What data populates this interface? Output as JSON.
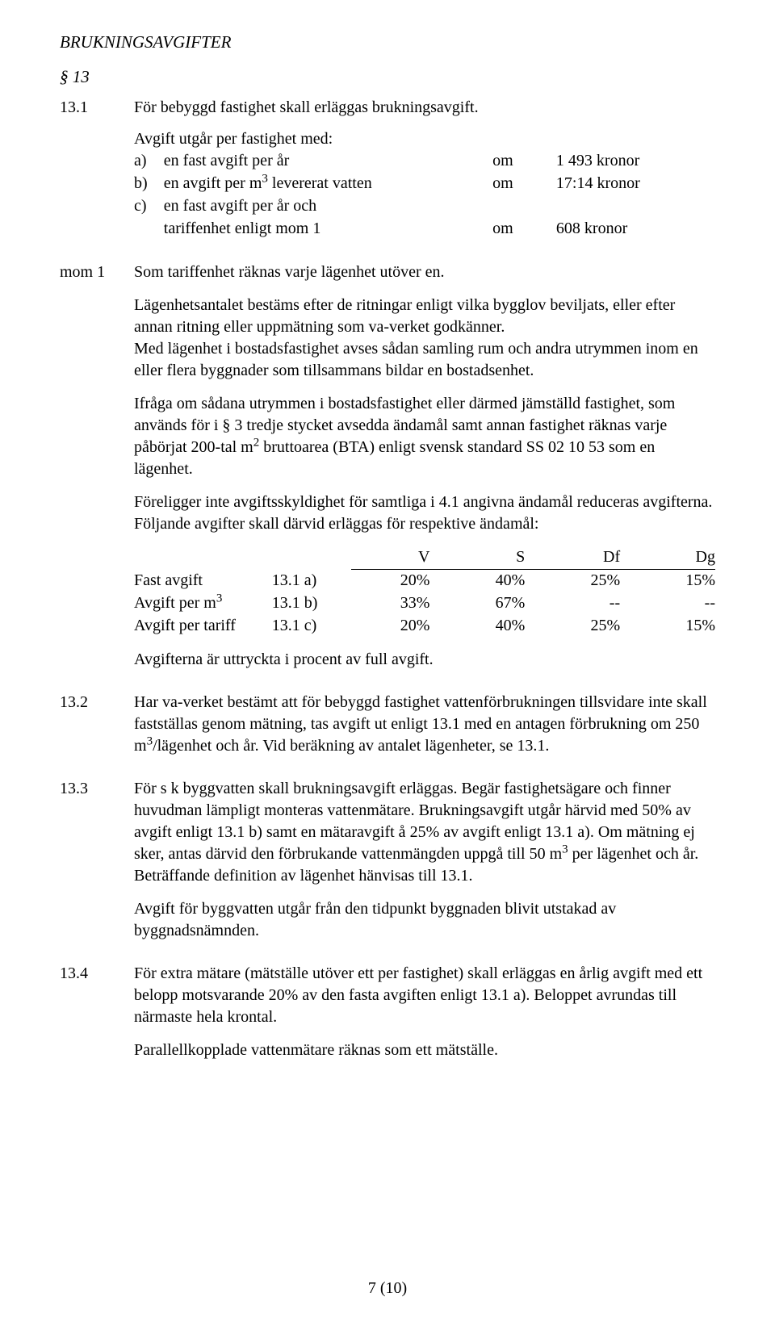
{
  "section_heading": "BRUKNINGSAVGIFTER",
  "paragraph_13": "§ 13",
  "s13_1": {
    "num": "13.1",
    "intro": "För bebyggd fastighet skall erläggas brukningsavgift.",
    "tariff_lead": "Avgift utgår per fastighet med:",
    "rows": [
      {
        "k": "a)",
        "desc_pre": "en fast avgift per år",
        "desc_sup": "",
        "desc_post": "",
        "om": "om",
        "val": "1 493 kronor"
      },
      {
        "k": "b)",
        "desc_pre": "en avgift per m",
        "desc_sup": "3",
        "desc_post": " levererat vatten",
        "om": "om",
        "val": "17:14 kronor"
      },
      {
        "k": "c)",
        "desc_pre": "en fast avgift per år och",
        "desc_sup": "",
        "desc_post": "",
        "om": "",
        "val": ""
      },
      {
        "k": "",
        "desc_pre": "tariffenhet enligt mom 1",
        "desc_sup": "",
        "desc_post": "",
        "om": "om",
        "val": "608 kronor"
      }
    ],
    "mom1_label": "mom 1",
    "mom1_text": "Som tariffenhet räknas varje lägenhet utöver en.",
    "p2": "Lägenhetsantalet bestäms efter de ritningar enligt vilka bygglov beviljats, eller efter annan ritning eller uppmätning som va-verket godkänner.",
    "p3": "Med lägenhet i bostadsfastighet avses sådan samling rum och andra utrymmen inom en eller flera byggnader som tillsammans bildar en bostadsenhet.",
    "p4_pre": "Ifråga om sådana utrymmen i bostadsfastighet eller därmed jämställd fastighet, som används för i § 3 tredje stycket avsedda ändamål samt annan fastighet räknas varje påbörjat 200-tal m",
    "p4_sup": "2",
    "p4_post": " bruttoarea (BTA) enligt svensk standard SS 02 10 53 som en lägenhet.",
    "p5": "Föreligger inte avgiftsskyldighet för samtliga i 4.1 angivna ändamål reduceras avgifterna. Följande avgifter skall därvid erläggas för respektive ändamål:",
    "pct_head": {
      "v": "V",
      "s": "S",
      "df": "Df",
      "dg": "Dg"
    },
    "pct_rows": [
      {
        "l_pre": "Fast avgift",
        "l_sup": "",
        "ref": "13.1 a)",
        "v": "20%",
        "s": "40%",
        "df": "25%",
        "dg": "15%"
      },
      {
        "l_pre": "Avgift per m",
        "l_sup": "3",
        "ref": "13.1 b)",
        "v": "33%",
        "s": "67%",
        "df": "--",
        "dg": "--"
      },
      {
        "l_pre": "Avgift per tariff",
        "l_sup": "",
        "ref": "13.1 c)",
        "v": "20%",
        "s": "40%",
        "df": "25%",
        "dg": "15%"
      }
    ],
    "p6": "Avgifterna är uttryckta i procent av full avgift."
  },
  "s13_2": {
    "num": "13.2",
    "t_pre": "Har va-verket bestämt att för bebyggd fastighet vattenförbrukningen tillsvidare inte skall fastställas genom mätning, tas avgift ut enligt 13.1 med en antagen förbrukning om 250 m",
    "t_sup": "3",
    "t_post": "/lägenhet och år. Vid beräkning av antalet lägenheter, se 13.1."
  },
  "s13_3": {
    "num": "13.3",
    "t1_pre": "För s k byggvatten skall brukningsavgift erläggas. Begär fastighetsägare och finner huvudman lämpligt monteras vattenmätare. Brukningsavgift utgår härvid med 50% av avgift enligt 13.1 b) samt en mätaravgift å 25% av avgift enligt 13.1 a). Om mätning ej sker, antas därvid den förbrukande vattenmängden uppgå till 50 m",
    "t1_sup": "3",
    "t1_post": " per lägenhet och år. Beträffande definition av lägenhet hänvisas till 13.1.",
    "t2": "Avgift för byggvatten utgår från den tidpunkt byggnaden blivit utstakad av byggnadsnämnden."
  },
  "s13_4": {
    "num": "13.4",
    "t1": "För extra mätare (mätställe utöver ett per fastighet) skall erläggas en årlig avgift med ett belopp motsvarande 20% av den fasta avgiften enligt 13.1 a). Beloppet avrundas till närmaste hela krontal.",
    "t2": "Parallellkopplade vattenmätare räknas som ett mätställe."
  },
  "footer": "7 (10)"
}
